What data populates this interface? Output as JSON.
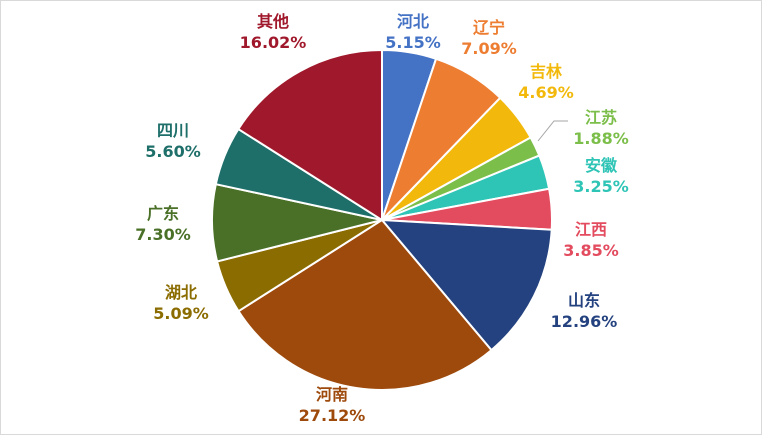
{
  "chart_data": {
    "type": "pie",
    "title": "",
    "slices": [
      {
        "name": "河北",
        "value": 5.15,
        "label": "5.15%",
        "color": "#4472C4"
      },
      {
        "name": "辽宁",
        "value": 7.09,
        "label": "7.09%",
        "color": "#ED7D31"
      },
      {
        "name": "吉林",
        "value": 4.69,
        "label": "4.69%",
        "color": "#F2B90C"
      },
      {
        "name": "江苏",
        "value": 1.88,
        "label": "1.88%",
        "color": "#7CBE4A"
      },
      {
        "name": "安徽",
        "value": 3.25,
        "label": "3.25%",
        "color": "#2EC4B6"
      },
      {
        "name": "江西",
        "value": 3.85,
        "label": "3.85%",
        "color": "#E34B5F"
      },
      {
        "name": "山东",
        "value": 12.96,
        "label": "12.96%",
        "color": "#24427F"
      },
      {
        "name": "河南",
        "value": 27.12,
        "label": "27.12%",
        "color": "#9E4A0C"
      },
      {
        "name": "湖北",
        "value": 5.09,
        "label": "5.09%",
        "color": "#8B6C00"
      },
      {
        "name": "广东",
        "value": 7.3,
        "label": "7.30%",
        "color": "#4A7028"
      },
      {
        "name": "四川",
        "value": 5.6,
        "label": "5.60%",
        "color": "#1E6F6A"
      },
      {
        "name": "其他",
        "value": 16.02,
        "label": "16.02%",
        "color": "#A0182B"
      }
    ]
  }
}
